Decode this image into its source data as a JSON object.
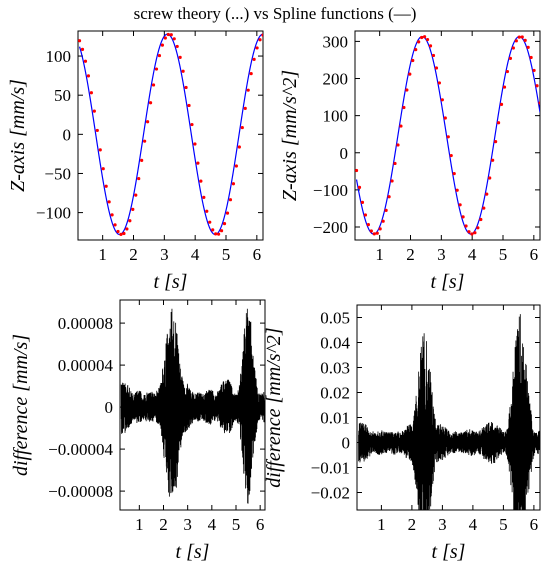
{
  "title": "screw theory (...) vs Spline functions (—)",
  "chart_data": [
    {
      "id": "velocity",
      "type": "line",
      "xlabel": "t [s]",
      "ylabel": "Z-axis [mm/s]",
      "xlim": [
        0.2,
        6.2
      ],
      "ylim": [
        -135,
        132
      ],
      "xticks": [
        1,
        2,
        3,
        4,
        5,
        6
      ],
      "yticks": [
        -100,
        -50,
        0,
        50,
        100
      ],
      "ytick_labels": [
        "−100",
        "−50",
        "0",
        "50",
        "100"
      ],
      "series": [
        {
          "style": "solid",
          "color": "#0000ff",
          "shape": "sine",
          "amplitude": 128,
          "period": 3.1,
          "peak_t": 3.1,
          "t_range": [
            0.25,
            6.2
          ]
        },
        {
          "style": "dotted",
          "color": "#ff0000",
          "shape": "sine",
          "amplitude": 128,
          "period": 3.1,
          "peak_t": 3.17,
          "t_range": [
            0.25,
            6.2
          ]
        }
      ]
    },
    {
      "id": "acceleration",
      "type": "line",
      "xlabel": "t [s]",
      "ylabel": "Z-axis [mm/s^2]",
      "xlim": [
        0.2,
        6.2
      ],
      "ylim": [
        -235,
        328
      ],
      "xticks": [
        1,
        2,
        3,
        4,
        5,
        6
      ],
      "yticks": [
        -200,
        -100,
        0,
        100,
        200,
        300
      ],
      "ytick_labels": [
        "−200",
        "−100",
        "0",
        "100",
        "200",
        "300"
      ],
      "series": [
        {
          "style": "solid",
          "color": "#0000ff",
          "shape": "sine",
          "offset": 47,
          "amplitude": 266,
          "period": 3.15,
          "peak_t": 2.38,
          "t_range": [
            0.25,
            6.2
          ]
        },
        {
          "style": "dotted",
          "color": "#ff0000",
          "shape": "sine",
          "offset": 47,
          "amplitude": 266,
          "period": 3.15,
          "peak_t": 2.43,
          "t_range": [
            0.25,
            6.2
          ]
        }
      ]
    },
    {
      "id": "velocity-difference",
      "type": "line",
      "xlabel": "t [s]",
      "ylabel": "difference [mm/s]",
      "xlim": [
        0.2,
        6.2
      ],
      "ylim": [
        -9.8e-05,
        0.000102
      ],
      "xticks": [
        1,
        2,
        3,
        4,
        5,
        6
      ],
      "yticks": [
        -8e-05,
        -4e-05,
        0,
        4e-05,
        8e-05
      ],
      "ytick_labels": [
        "−0.00008",
        "−0.00004",
        "0",
        "0.00004",
        "0.00008"
      ],
      "series": [
        {
          "style": "noise",
          "color": "#000000",
          "t_range": [
            0.25,
            6.2
          ],
          "base_amplitude": 2.5e-05,
          "bursts": [
            {
              "center": 2.35,
              "width": 0.4,
              "amplitude": 9.5e-05
            },
            {
              "center": 5.5,
              "width": 0.3,
              "amplitude": 9.5e-05
            }
          ]
        }
      ]
    },
    {
      "id": "acceleration-difference",
      "type": "line",
      "xlabel": "t [s]",
      "ylabel": "difference [mm/s^2]",
      "xlim": [
        0.2,
        6.2
      ],
      "ylim": [
        -0.027,
        0.055
      ],
      "xticks": [
        1,
        2,
        3,
        4,
        5,
        6
      ],
      "yticks": [
        -0.02,
        -0.01,
        0,
        0.01,
        0.02,
        0.03,
        0.04,
        0.05
      ],
      "ytick_labels": [
        "−0.02",
        "−0.01",
        "0",
        "0.01",
        "0.02",
        "0.03",
        "0.04",
        "0.05"
      ],
      "series": [
        {
          "style": "noise",
          "color": "#000000",
          "t_range": [
            0.25,
            6.2
          ],
          "base_amplitude": 0.008,
          "bursts": [
            {
              "center": 2.4,
              "width": 0.3,
              "amplitude": 0.045
            },
            {
              "center": 5.55,
              "width": 0.3,
              "amplitude": 0.052
            }
          ]
        }
      ]
    }
  ]
}
